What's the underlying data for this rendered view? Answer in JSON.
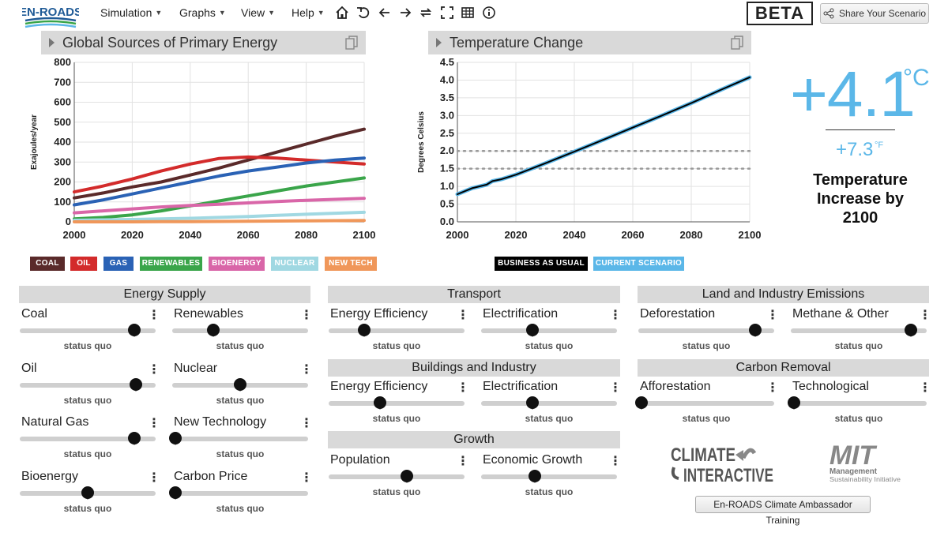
{
  "header": {
    "logo_text": "EN-ROADS",
    "menus": [
      {
        "label": "Simulation"
      },
      {
        "label": "Graphs"
      },
      {
        "label": "View"
      },
      {
        "label": "Help"
      }
    ],
    "tools": [
      "home-icon",
      "undo-icon",
      "back-icon",
      "forward-icon",
      "compare-icon",
      "fullscreen-icon",
      "table-icon",
      "info-icon"
    ],
    "beta": "BETA",
    "share_label": "Share Your Scenario"
  },
  "graph1": {
    "title": "Global Sources of Primary Energy",
    "legend": [
      {
        "label": "COAL",
        "color": "#5a2a2a"
      },
      {
        "label": "OIL",
        "color": "#d32b2b"
      },
      {
        "label": "GAS",
        "color": "#2a62b5"
      },
      {
        "label": "RENEWABLES",
        "color": "#3aa54a"
      },
      {
        "label": "BIOENERGY",
        "color": "#d966a8"
      },
      {
        "label": "NUCLEAR",
        "color": "#a0d8e2"
      },
      {
        "label": "NEW TECH",
        "color": "#f0975a"
      }
    ]
  },
  "graph2": {
    "title": "Temperature Change",
    "legend": [
      {
        "label": "BUSINESS AS USUAL",
        "color": "#000000"
      },
      {
        "label": "CURRENT SCENARIO",
        "color": "#5bb7e8"
      }
    ]
  },
  "chart_data": [
    {
      "type": "line",
      "title": "Global Sources of Primary Energy",
      "xlabel": "",
      "ylabel": "Exajoules/year",
      "xlim": [
        2000,
        2100
      ],
      "ylim": [
        0,
        800
      ],
      "xticks": [
        "2000",
        "2020",
        "2040",
        "2060",
        "2080",
        "2100"
      ],
      "yticks": [
        "0",
        "100",
        "200",
        "300",
        "400",
        "500",
        "600",
        "700",
        "800"
      ],
      "x": [
        2000,
        2010,
        2020,
        2030,
        2040,
        2050,
        2060,
        2070,
        2080,
        2090,
        2100
      ],
      "series": [
        {
          "name": "Coal",
          "color": "#5a2a2a",
          "values": [
            120,
            145,
            175,
            200,
            235,
            270,
            310,
            350,
            390,
            430,
            465
          ]
        },
        {
          "name": "Oil",
          "color": "#d32b2b",
          "values": [
            150,
            180,
            215,
            255,
            290,
            318,
            325,
            320,
            310,
            300,
            290
          ]
        },
        {
          "name": "Gas",
          "color": "#2a62b5",
          "values": [
            85,
            110,
            140,
            170,
            200,
            230,
            255,
            275,
            295,
            310,
            320
          ]
        },
        {
          "name": "Renewables",
          "color": "#3aa54a",
          "values": [
            15,
            22,
            35,
            55,
            80,
            105,
            130,
            155,
            180,
            200,
            220
          ]
        },
        {
          "name": "Bioenergy",
          "color": "#d966a8",
          "values": [
            45,
            55,
            65,
            75,
            82,
            88,
            95,
            102,
            108,
            113,
            118
          ]
        },
        {
          "name": "Nuclear",
          "color": "#a0d8e2",
          "values": [
            8,
            10,
            12,
            15,
            18,
            22,
            27,
            33,
            38,
            43,
            48
          ]
        },
        {
          "name": "New Tech",
          "color": "#f0975a",
          "values": [
            0,
            0,
            0,
            1,
            1,
            2,
            3,
            4,
            5,
            6,
            7
          ]
        }
      ]
    },
    {
      "type": "line",
      "title": "Temperature Change",
      "xlabel": "",
      "ylabel": "Degrees Celsius",
      "xlim": [
        2000,
        2100
      ],
      "ylim": [
        0,
        4.5
      ],
      "xticks": [
        "2000",
        "2020",
        "2040",
        "2060",
        "2080",
        "2100"
      ],
      "yticks": [
        "0.0",
        "0.5",
        "1.0",
        "1.5",
        "2.0",
        "2.5",
        "3.0",
        "3.5",
        "4.0",
        "4.5"
      ],
      "reference_lines": [
        1.5,
        2.0
      ],
      "x": [
        2000,
        2005,
        2010,
        2012,
        2015,
        2020,
        2030,
        2040,
        2050,
        2060,
        2070,
        2080,
        2090,
        2100
      ],
      "series": [
        {
          "name": "Business as Usual",
          "color": "#000000",
          "values": [
            0.78,
            0.95,
            1.05,
            1.15,
            1.2,
            1.33,
            1.65,
            1.98,
            2.32,
            2.66,
            3.0,
            3.35,
            3.72,
            4.08
          ]
        },
        {
          "name": "Current Scenario",
          "color": "#5bb7e8",
          "values": [
            0.78,
            0.95,
            1.05,
            1.15,
            1.2,
            1.33,
            1.65,
            1.98,
            2.32,
            2.66,
            3.0,
            3.35,
            3.72,
            4.08
          ]
        }
      ]
    }
  ],
  "result": {
    "celsius": "+4.1",
    "celsius_unit": "°C",
    "fahrenheit": "+7.3",
    "fahrenheit_unit": "°F",
    "caption": "Temperature Increase by 2100"
  },
  "sections": {
    "energy_supply": "Energy Supply",
    "transport": "Transport",
    "buildings": "Buildings and Industry",
    "growth": "Growth",
    "land": "Land and Industry Emissions",
    "removal": "Carbon Removal"
  },
  "sliders": {
    "coal": {
      "label": "Coal",
      "status": "status quo",
      "value": 0.86
    },
    "renewables": {
      "label": "Renewables",
      "status": "status quo",
      "value": 0.29
    },
    "oil": {
      "label": "Oil",
      "status": "status quo",
      "value": 0.87
    },
    "nuclear": {
      "label": "Nuclear",
      "status": "status quo",
      "value": 0.5
    },
    "natural_gas": {
      "label": "Natural Gas",
      "status": "status quo",
      "value": 0.86
    },
    "new_technology": {
      "label": "New Technology",
      "status": "status quo",
      "value": 0.0
    },
    "bioenergy": {
      "label": "Bioenergy",
      "status": "status quo",
      "value": 0.5
    },
    "carbon_price": {
      "label": "Carbon Price",
      "status": "status quo",
      "value": 0.0
    },
    "transport_efficiency": {
      "label": "Energy Efficiency",
      "status": "status quo",
      "value": 0.25
    },
    "transport_electrification": {
      "label": "Electrification",
      "status": "status quo",
      "value": 0.37
    },
    "buildings_efficiency": {
      "label": "Energy Efficiency",
      "status": "status quo",
      "value": 0.37
    },
    "buildings_electrification": {
      "label": "Electrification",
      "status": "status quo",
      "value": 0.37
    },
    "population": {
      "label": "Population",
      "status": "status quo",
      "value": 0.58
    },
    "economic_growth": {
      "label": "Economic Growth",
      "status": "status quo",
      "value": 0.39
    },
    "deforestation": {
      "label": "Deforestation",
      "status": "status quo",
      "value": 0.88
    },
    "methane": {
      "label": "Methane & Other",
      "status": "status quo",
      "value": 0.9
    },
    "afforestation": {
      "label": "Afforestation",
      "status": "status quo",
      "value": 0.0
    },
    "technological": {
      "label": "Technological",
      "status": "status quo",
      "value": 0.0
    }
  },
  "logos": {
    "climate_interactive": [
      "CLIMATE",
      "INTERACTIVE"
    ],
    "mit": [
      "MIT",
      "Management",
      "Sustainability Initiative"
    ]
  },
  "training_label": "En-ROADS Climate Ambassador Training"
}
